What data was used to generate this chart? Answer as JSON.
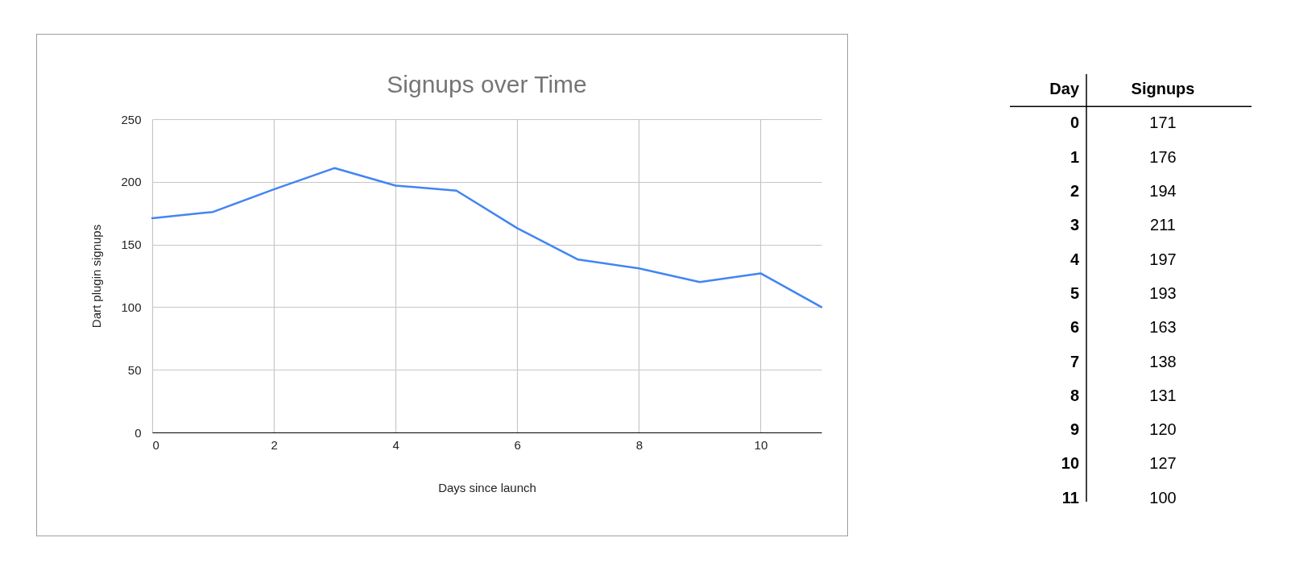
{
  "chart_data": [
    {
      "type": "line",
      "title": "Signups over Time",
      "xlabel": "Days since launch",
      "ylabel": "Dart plugin signups",
      "x": [
        0,
        1,
        2,
        3,
        4,
        5,
        6,
        7,
        8,
        9,
        10,
        11
      ],
      "series": [
        {
          "color": "#4285f4",
          "values": [
            171,
            176,
            194,
            211,
            197,
            193,
            163,
            138,
            131,
            120,
            127,
            100
          ]
        }
      ],
      "xlim": [
        0,
        11
      ],
      "xticks": [
        0,
        2,
        4,
        6,
        8,
        10
      ],
      "ylim": [
        0,
        250
      ],
      "yticks": [
        0,
        50,
        100,
        150,
        200,
        250
      ],
      "grid": true,
      "marker": "none",
      "line_style": "solid"
    },
    {
      "type": "heatmap",
      "ylabel": "Day",
      "categories": [
        "Signups"
      ],
      "data_labels": true,
      "y_categories": [
        "0",
        "1",
        "2",
        "3",
        "4",
        "5",
        "6",
        "7",
        "8",
        "9",
        "10",
        "11"
      ],
      "cells": [
        [
          171
        ],
        [
          176
        ],
        [
          194
        ],
        [
          211
        ],
        [
          197
        ],
        [
          193
        ],
        [
          163
        ],
        [
          138
        ],
        [
          131
        ],
        [
          120
        ],
        [
          127
        ],
        [
          100
        ]
      ]
    }
  ]
}
